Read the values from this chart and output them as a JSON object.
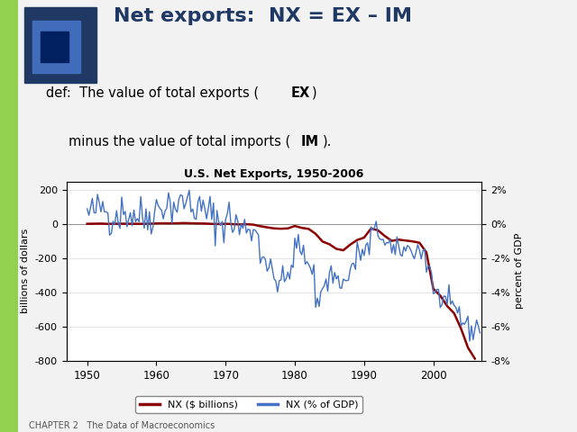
{
  "title": "U.S. Net Exports, 1950-2006",
  "ylabel_left": "billions of dollars",
  "ylabel_right": "percent of GDP",
  "xlim": [
    1947,
    2007
  ],
  "ylim_left": [
    -800,
    250
  ],
  "ylim_right": [
    -8,
    2.5
  ],
  "yticks_left": [
    -800,
    -600,
    -400,
    -200,
    0,
    200
  ],
  "yticks_right": [
    -8,
    -6,
    -4,
    -2,
    0,
    2
  ],
  "xticks": [
    1950,
    1960,
    1970,
    1980,
    1990,
    2000
  ],
  "color_billions": "#8B0000",
  "color_pct": "#4472C4",
  "legend_entries": [
    "NX ($ billions)",
    "NX (% of GDP)"
  ],
  "header_title": "Net exports:  NX = EX – IM",
  "footer": "CHAPTER 2   The Data of Macroeconomics",
  "bg_color": "#F2F2F2",
  "left_bar_color": "#92D050",
  "header_color": "#1F3864",
  "chart_bg": "#FFFFFF",
  "nx_billions": [
    1.8,
    2.5,
    3.2,
    1.5,
    2.0,
    2.5,
    2.0,
    1.8,
    1.5,
    2.2,
    4.0,
    5.0,
    4.5,
    4.8,
    6.5,
    5.0,
    4.0,
    3.5,
    1.5,
    0.5,
    2.0,
    0.0,
    -1.5,
    -0.5,
    -3.0,
    -12.0,
    -19.0,
    -25.0,
    -27.0,
    -25.0,
    -11.0,
    -22.0,
    -28.0,
    -57.0,
    -102.0,
    -118.0,
    -145.0,
    -153.0,
    -120.0,
    -93.0,
    -79.0,
    -26.0,
    -36.0,
    -70.0,
    -98.0,
    -91.0,
    -96.0,
    -101.0,
    -109.0,
    -166.0,
    -379.0,
    -419.0,
    -480.0,
    -522.0,
    -612.0,
    -723.0,
    -788.0
  ],
  "nx_pct_gdp_annual": [
    0.6,
    0.8,
    1.0,
    0.5,
    0.6,
    0.7,
    0.6,
    0.5,
    0.4,
    0.6,
    1.0,
    1.2,
    1.1,
    1.1,
    1.4,
    1.0,
    0.8,
    0.7,
    0.3,
    0.1,
    0.4,
    0.0,
    -0.3,
    -0.1,
    -0.5,
    -1.8,
    -2.7,
    -3.3,
    -3.3,
    -2.8,
    -1.1,
    -2.0,
    -2.4,
    -4.5,
    -3.5,
    -2.9,
    -3.3,
    -3.4,
    -2.4,
    -1.7,
    -1.5,
    -0.5,
    -0.6,
    -1.2,
    -1.7,
    -1.5,
    -1.5,
    -1.5,
    -1.6,
    -2.5,
    -4.2,
    -4.4,
    -4.9,
    -5.1,
    -5.7,
    -6.2,
    -6.0
  ],
  "years_start": 1950,
  "years_end": 2006
}
